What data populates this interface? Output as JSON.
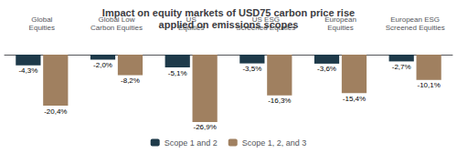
{
  "chart_data": {
    "type": "bar",
    "title": "Impact on equity markets of USD75 carbon price rise\napplied on emissions scopes",
    "categories": [
      "Global\nEquities",
      "Global Low\nCarbon Equities",
      "US\nEquities",
      "US ESG\nScreened Equities",
      "European\nEquities",
      "European ESG\nScreened Equities"
    ],
    "series": [
      {
        "name": "Scope 1 and 2",
        "color": "#1e3a4a",
        "values": [
          -4.3,
          -2.0,
          -5.1,
          -3.5,
          -3.6,
          -2.7
        ],
        "value_labels": [
          "-4,3%",
          "-2,0%",
          "-5,1%",
          "-3,5%",
          "-3,6%",
          "-2,7%"
        ]
      },
      {
        "name": "Scope 1, 2, and 3",
        "color": "#a08060",
        "values": [
          -20.4,
          -8.2,
          -26.9,
          -16.3,
          -15.4,
          -10.1
        ],
        "value_labels": [
          "-20,4%",
          "-8,2%",
          "-26,9%",
          "-16,3%",
          "-15,4%",
          "-10,1%"
        ]
      }
    ],
    "ylim": [
      -32,
      8
    ],
    "grid": false,
    "tick_labels": false,
    "data_labels": true,
    "legend": "bottom"
  }
}
